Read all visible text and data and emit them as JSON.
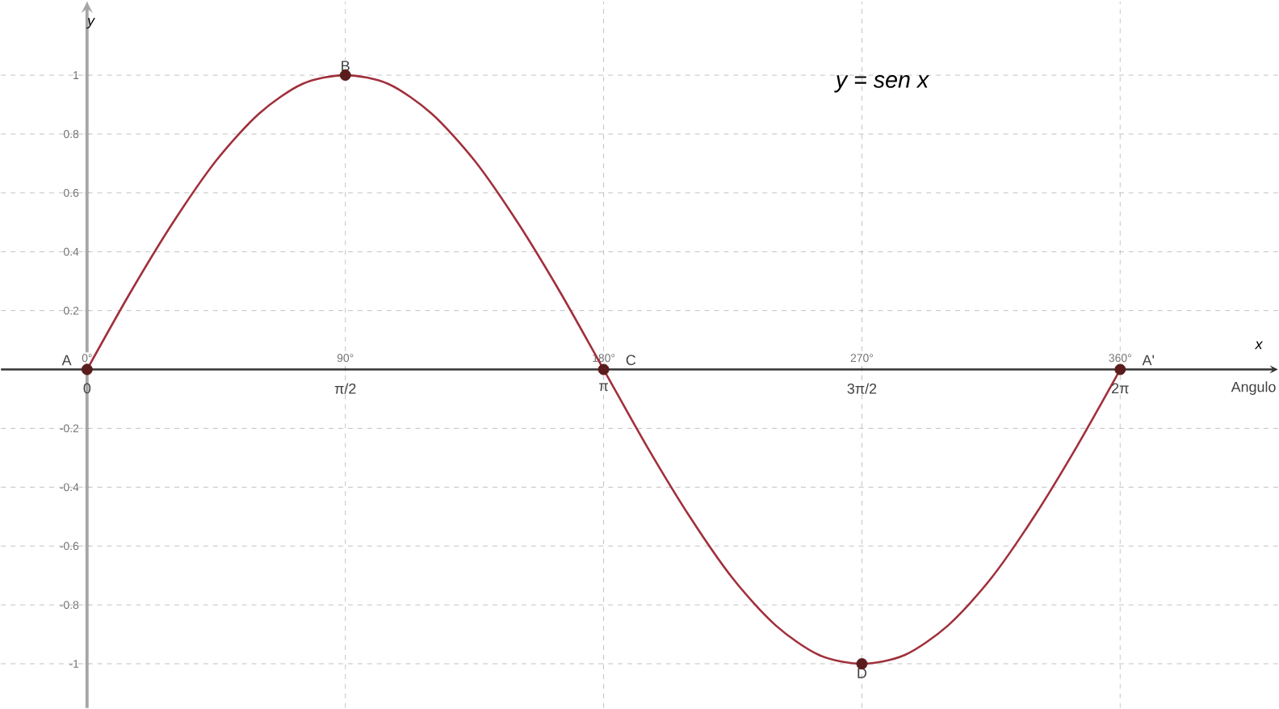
{
  "chart_data": {
    "type": "line",
    "title": "y = sen x",
    "xlabel": "x",
    "ylabel": "y",
    "series": [
      {
        "color": "#a0303c",
        "x": [
          0,
          15,
          30,
          45,
          60,
          75,
          90,
          105,
          120,
          135,
          150,
          165,
          180,
          195,
          210,
          225,
          240,
          255,
          270,
          285,
          300,
          315,
          330,
          345,
          360
        ],
        "values": [
          0,
          0.26,
          0.5,
          0.71,
          0.87,
          0.97,
          1,
          0.97,
          0.87,
          0.71,
          0.5,
          0.26,
          0,
          -0.26,
          -0.5,
          -0.71,
          -0.87,
          -0.97,
          -1,
          -0.97,
          -0.87,
          -0.71,
          -0.5,
          -0.26,
          0
        ]
      },
      {
        "type": "scatter",
        "color": "#5a1c1c",
        "marker": "circle",
        "x": [
          0,
          90,
          180,
          270,
          360
        ],
        "values": [
          0,
          1,
          0,
          -1,
          0
        ]
      }
    ],
    "xlim": [
      -30,
      415
    ],
    "ylim": [
      -1.15,
      1.25
    ],
    "xticks": [
      {
        "value": 0,
        "label": "0°"
      },
      {
        "value": 90,
        "label": "90°"
      },
      {
        "value": 180,
        "label": "180°"
      },
      {
        "value": 270,
        "label": "270°"
      },
      {
        "value": 360,
        "label": "360°"
      }
    ],
    "yticks": [
      -1,
      -0.8,
      -0.6,
      -0.4,
      -0.2,
      0.2,
      0.4,
      0.6,
      0.8,
      1
    ],
    "grid": true,
    "line_style": "solid",
    "annotations": [
      {
        "text": "A",
        "x": 0,
        "y": 0
      },
      {
        "text": "B",
        "x": 90,
        "y": 1
      },
      {
        "text": "C",
        "x": 180,
        "y": 0
      },
      {
        "text": "D",
        "x": 270,
        "y": -1
      },
      {
        "text": "A'",
        "x": 360,
        "y": 0
      },
      "0",
      "π/2",
      "π",
      "3π/2",
      "2π",
      "Angulo"
    ]
  }
}
